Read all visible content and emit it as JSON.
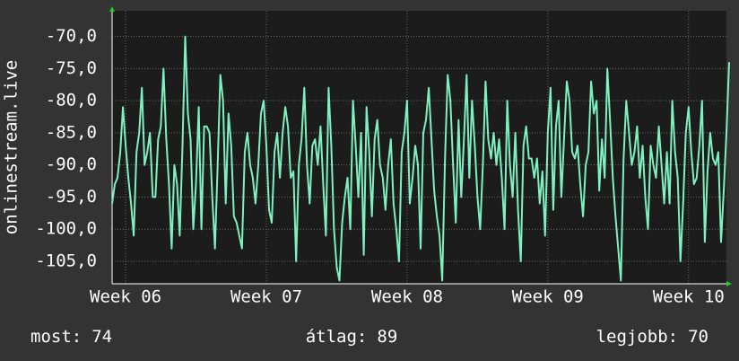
{
  "chart_data": {
    "type": "line",
    "ylabel": "onlinestream.live",
    "xlim": [
      0,
      227
    ],
    "xticks": [
      {
        "value": 5,
        "label": "Week 06"
      },
      {
        "value": 57,
        "label": "Week 07"
      },
      {
        "value": 109,
        "label": "Week 08"
      },
      {
        "value": 161,
        "label": "Week 09"
      },
      {
        "value": 213,
        "label": "Week 10"
      }
    ],
    "ylim": [
      -108.5,
      -66
    ],
    "yticks": [
      {
        "value": -70,
        "label": "-70,0"
      },
      {
        "value": -75,
        "label": "-75,0"
      },
      {
        "value": -80,
        "label": "-80,0"
      },
      {
        "value": -85,
        "label": "-85,0"
      },
      {
        "value": -90,
        "label": "-90,0"
      },
      {
        "value": -95,
        "label": "-95,0"
      },
      {
        "value": -100,
        "label": "-100,0"
      },
      {
        "value": -105,
        "label": "-105,0"
      }
    ],
    "grid": true,
    "series": [
      {
        "color": "#7ff0bf",
        "values": [
          -96,
          -93,
          -92,
          -88,
          -81,
          -87,
          -92,
          -96,
          -101,
          -88,
          -85,
          -78,
          -90,
          -88,
          -85,
          -95,
          -95,
          -86,
          -84,
          -75,
          -86,
          -93,
          -103,
          -90,
          -93,
          -101,
          -87,
          -70,
          -82,
          -86,
          -100,
          -93,
          -81,
          -100,
          -84,
          -84,
          -85,
          -95,
          -103,
          -90,
          -76,
          -80,
          -96,
          -82,
          -87,
          -98,
          -99,
          -101,
          -103,
          -88,
          -85,
          -90,
          -92,
          -96,
          -90,
          -82,
          -80,
          -87,
          -97,
          -99,
          -88,
          -85,
          -92,
          -85,
          -81,
          -84,
          -92,
          -91,
          -105,
          -90,
          -86,
          -78,
          -90,
          -96,
          -87,
          -86,
          -90,
          -84,
          -93,
          -101,
          -78,
          -87,
          -100,
          -106,
          -108,
          -99,
          -95,
          -92,
          -100,
          -80,
          -87,
          -95,
          -85,
          -104,
          -81,
          -88,
          -98,
          -86,
          -83,
          -90,
          -92,
          -97,
          -90,
          -86,
          -96,
          -100,
          -105,
          -88,
          -85,
          -80,
          -96,
          -92,
          -87,
          -90,
          -103,
          -85,
          -83,
          -78,
          -86,
          -94,
          -98,
          -101,
          -108,
          -89,
          -76,
          -80,
          -90,
          -99,
          -83,
          -95,
          -86,
          -76,
          -92,
          -80,
          -87,
          -95,
          -100,
          -90,
          -77,
          -86,
          -89,
          -85,
          -90,
          -86,
          -92,
          -100,
          -80,
          -90,
          -95,
          -85,
          -97,
          -105,
          -87,
          -84,
          -89,
          -89,
          -92,
          -89,
          -96,
          -91,
          -101,
          -85,
          -78,
          -97,
          -84,
          -80,
          -95,
          -86,
          -77,
          -80,
          -88,
          -89,
          -87,
          -93,
          -98,
          -90,
          -88,
          -77,
          -82,
          -80,
          -94,
          -86,
          -92,
          -75,
          -83,
          -92,
          -98,
          -103,
          -108,
          -89,
          -80,
          -85,
          -90,
          -88,
          -84,
          -92,
          -87,
          -95,
          -100,
          -87,
          -90,
          -92,
          -84,
          -90,
          -96,
          -88,
          -96,
          -80,
          -88,
          -92,
          -105,
          -96,
          -85,
          -81,
          -88,
          -93,
          -92,
          -87,
          -80,
          -102,
          -91,
          -85,
          -89,
          -90,
          -88,
          -102,
          -94,
          -85,
          -74
        ]
      }
    ]
  },
  "stats": [
    {
      "label": "most:",
      "value": 74
    },
    {
      "label": "átlag:",
      "value": 89
    },
    {
      "label": "legjobb:",
      "value": 70
    }
  ]
}
